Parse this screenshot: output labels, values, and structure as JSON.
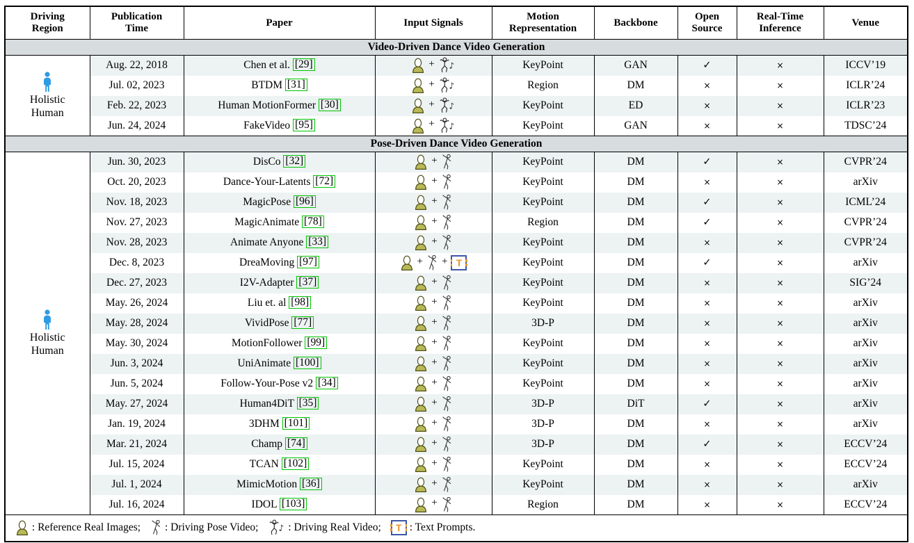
{
  "header": {
    "columns": [
      "Driving Region",
      "Publication Time",
      "Paper",
      "Input Signals",
      "Motion Representation",
      "Backbone",
      "Open Source",
      "Real-Time Inference",
      "Venue"
    ]
  },
  "sections": [
    {
      "title": "Video-Driven Dance Video Generation",
      "region": {
        "label": "Holistic Human",
        "icon": "holistic-human-icon"
      },
      "rows": [
        {
          "date": "Aug. 22, 2018",
          "paper": "Chen et al.",
          "cite": "[29]",
          "inputs": [
            "ref-image",
            "real-video"
          ],
          "motion": "KeyPoint",
          "backbone": "GAN",
          "open_source": "✓",
          "real_time": "×",
          "venue": "ICCV’19"
        },
        {
          "date": "Jul. 02, 2023",
          "paper": "BTDM",
          "cite": "[31]",
          "inputs": [
            "ref-image",
            "real-video"
          ],
          "motion": "Region",
          "backbone": "DM",
          "open_source": "×",
          "real_time": "×",
          "venue": "ICLR’24"
        },
        {
          "date": "Feb. 22, 2023",
          "paper": "Human MotionFormer",
          "cite": "[30]",
          "inputs": [
            "ref-image",
            "real-video"
          ],
          "motion": "KeyPoint",
          "backbone": "ED",
          "open_source": "×",
          "real_time": "×",
          "venue": "ICLR’23"
        },
        {
          "date": "Jun. 24, 2024",
          "paper": "FakeVideo",
          "cite": "[95]",
          "inputs": [
            "ref-image",
            "real-video"
          ],
          "motion": "KeyPoint",
          "backbone": "GAN",
          "open_source": "×",
          "real_time": "×",
          "venue": "TDSC’24"
        }
      ]
    },
    {
      "title": "Pose-Driven Dance Video Generation",
      "region": {
        "label": "Holistic Human",
        "icon": "holistic-human-icon"
      },
      "rows": [
        {
          "date": "Jun. 30, 2023",
          "paper": "DisCo",
          "cite": "[32]",
          "inputs": [
            "ref-image",
            "pose-video"
          ],
          "motion": "KeyPoint",
          "backbone": "DM",
          "open_source": "✓",
          "real_time": "×",
          "venue": "CVPR’24"
        },
        {
          "date": "Oct. 20, 2023",
          "paper": "Dance-Your-Latents",
          "cite": "[72]",
          "inputs": [
            "ref-image",
            "pose-video"
          ],
          "motion": "KeyPoint",
          "backbone": "DM",
          "open_source": "×",
          "real_time": "×",
          "venue": "arXiv"
        },
        {
          "date": "Nov. 18, 2023",
          "paper": "MagicPose",
          "cite": "[96]",
          "inputs": [
            "ref-image",
            "pose-video"
          ],
          "motion": "KeyPoint",
          "backbone": "DM",
          "open_source": "✓",
          "real_time": "×",
          "venue": "ICML’24"
        },
        {
          "date": "Nov. 27, 2023",
          "paper": "MagicAnimate",
          "cite": "[78]",
          "inputs": [
            "ref-image",
            "pose-video"
          ],
          "motion": "Region",
          "backbone": "DM",
          "open_source": "✓",
          "real_time": "×",
          "venue": "CVPR’24"
        },
        {
          "date": "Nov. 28, 2023",
          "paper": "Animate Anyone",
          "cite": "[33]",
          "inputs": [
            "ref-image",
            "pose-video"
          ],
          "motion": "KeyPoint",
          "backbone": "DM",
          "open_source": "×",
          "real_time": "×",
          "venue": "CVPR’24"
        },
        {
          "date": "Dec. 8, 2023",
          "paper": "DreaMoving",
          "cite": "[97]",
          "inputs": [
            "ref-image",
            "pose-video",
            "text-prompt"
          ],
          "motion": "KeyPoint",
          "backbone": "DM",
          "open_source": "✓",
          "real_time": "×",
          "venue": "arXiv"
        },
        {
          "date": "Dec. 27, 2023",
          "paper": "I2V-Adapter",
          "cite": "[37]",
          "inputs": [
            "ref-image",
            "pose-video"
          ],
          "motion": "KeyPoint",
          "backbone": "DM",
          "open_source": "×",
          "real_time": "×",
          "venue": "SIG’24"
        },
        {
          "date": "May. 26, 2024",
          "paper": "Liu et. al",
          "cite": "[98]",
          "inputs": [
            "ref-image",
            "pose-video"
          ],
          "motion": "KeyPoint",
          "backbone": "DM",
          "open_source": "×",
          "real_time": "×",
          "venue": "arXiv"
        },
        {
          "date": "May. 28, 2024",
          "paper": "VividPose",
          "cite": "[77]",
          "inputs": [
            "ref-image",
            "pose-video"
          ],
          "motion": "3D-P",
          "backbone": "DM",
          "open_source": "×",
          "real_time": "×",
          "venue": "arXiv"
        },
        {
          "date": "May. 30, 2024",
          "paper": "MotionFollower",
          "cite": "[99]",
          "inputs": [
            "ref-image",
            "pose-video"
          ],
          "motion": "KeyPoint",
          "backbone": "DM",
          "open_source": "×",
          "real_time": "×",
          "venue": "arXiv"
        },
        {
          "date": "Jun. 3, 2024",
          "paper": "UniAnimate",
          "cite": "[100]",
          "inputs": [
            "ref-image",
            "pose-video"
          ],
          "motion": "KeyPoint",
          "backbone": "DM",
          "open_source": "×",
          "real_time": "×",
          "venue": "arXiv"
        },
        {
          "date": "Jun. 5, 2024",
          "paper": "Follow-Your-Pose v2",
          "cite": "[34]",
          "inputs": [
            "ref-image",
            "pose-video"
          ],
          "motion": "KeyPoint",
          "backbone": "DM",
          "open_source": "×",
          "real_time": "×",
          "venue": "arXiv"
        },
        {
          "date": "May. 27, 2024",
          "paper": "Human4DiT",
          "cite": "[35]",
          "inputs": [
            "ref-image",
            "pose-video"
          ],
          "motion": "3D-P",
          "backbone": "DiT",
          "open_source": "✓",
          "real_time": "×",
          "venue": "arXiv"
        },
        {
          "date": "Jan. 19, 2024",
          "paper": "3DHM",
          "cite": "[101]",
          "inputs": [
            "ref-image",
            "pose-video"
          ],
          "motion": "3D-P",
          "backbone": "DM",
          "open_source": "×",
          "real_time": "×",
          "venue": "arXiv"
        },
        {
          "date": "Mar. 21, 2024",
          "paper": "Champ",
          "cite": "[74]",
          "inputs": [
            "ref-image",
            "pose-video"
          ],
          "motion": "3D-P",
          "backbone": "DM",
          "open_source": "✓",
          "real_time": "×",
          "venue": "ECCV’24"
        },
        {
          "date": "Jul. 15, 2024",
          "paper": "TCAN",
          "cite": "[102]",
          "inputs": [
            "ref-image",
            "pose-video"
          ],
          "motion": "KeyPoint",
          "backbone": "DM",
          "open_source": "×",
          "real_time": "×",
          "venue": "ECCV’24"
        },
        {
          "date": "Jul. 1, 2024",
          "paper": "MimicMotion",
          "cite": "[36]",
          "inputs": [
            "ref-image",
            "pose-video"
          ],
          "motion": "KeyPoint",
          "backbone": "DM",
          "open_source": "×",
          "real_time": "×",
          "venue": "arXiv"
        },
        {
          "date": "Jul. 16, 2024",
          "paper": "IDOL",
          "cite": "[103]",
          "inputs": [
            "ref-image",
            "pose-video"
          ],
          "motion": "Region",
          "backbone": "DM",
          "open_source": "×",
          "real_time": "×",
          "venue": "ECCV’24"
        }
      ]
    }
  ],
  "legend": {
    "items": [
      {
        "icon": "ref-image",
        "text": "Reference Real Images"
      },
      {
        "icon": "pose-video",
        "text": "Driving Pose Video"
      },
      {
        "icon": "real-video",
        "text": "Driving Real Video"
      },
      {
        "icon": "text-prompt",
        "text": "Text Prompts"
      }
    ],
    "separator": ";",
    "terminator": "."
  },
  "colors": {
    "row_stripe": "#edf2f3",
    "section_bar": "#d7dcde",
    "citation_box": "#00c300",
    "human_icon_blue": "#2f9ce2",
    "avatar_body": "#b9b958",
    "text_prompt_orange": "#e8952f",
    "text_prompt_border": "#3c55a8",
    "border": "#000000"
  }
}
